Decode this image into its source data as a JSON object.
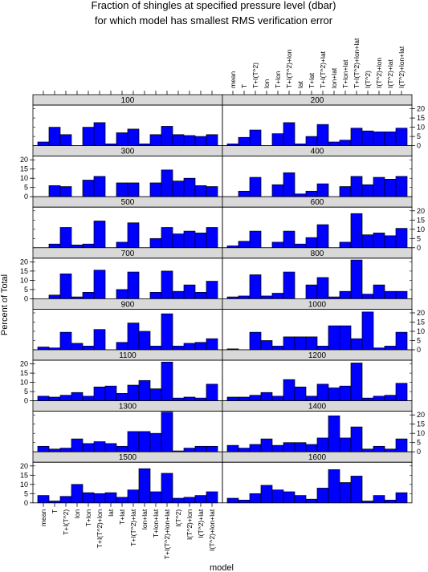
{
  "chart_data": {
    "type": "bar",
    "title": [
      "Fraction of shingles at specified pressure level (dbar)",
      "for which model has smallest RMS verification error"
    ],
    "xlabel": "model",
    "ylabel": "Percent of Total",
    "ylim": [
      0,
      22
    ],
    "yticks": [
      0,
      5,
      10,
      15,
      20
    ],
    "bar_color": "#0000ff",
    "strip_color": "#d9d9d9",
    "categories": [
      "mean",
      "T",
      "T+I(T^2)",
      "lon",
      "T+lon",
      "T+I(T^2)+lon",
      "lat",
      "T+lat",
      "T+I(T^2)+lat",
      "lon+lat",
      "T+lon+lat",
      "T+I(T^2)+lon+lat",
      "I(T^2)",
      "I(T^2)+lon",
      "I(T^2)+lat",
      "I(T^2)+lon+lat"
    ],
    "panels": [
      {
        "level": "100",
        "values": [
          2,
          10,
          6,
          0,
          10,
          12.5,
          1,
          7,
          9,
          1,
          6,
          10.5,
          6,
          5.5,
          5,
          6
        ]
      },
      {
        "level": "200",
        "values": [
          1,
          4.5,
          8.5,
          0,
          6.5,
          12.5,
          1,
          5,
          11.5,
          2,
          3,
          9.5,
          8,
          7.5,
          7.5,
          9.5
        ]
      },
      {
        "level": "300",
        "values": [
          0,
          6,
          5.5,
          0,
          9,
          11,
          0,
          7.5,
          7.5,
          0,
          7.5,
          14.5,
          8.5,
          10,
          6,
          5.5
        ]
      },
      {
        "level": "400",
        "values": [
          0,
          3,
          10.5,
          0,
          6.5,
          13,
          1.5,
          3,
          7,
          0,
          5.5,
          11,
          6.5,
          10.5,
          9.5,
          11
        ]
      },
      {
        "level": "500",
        "values": [
          0,
          2,
          11,
          1.5,
          2,
          14.5,
          0,
          3,
          13.5,
          0,
          5,
          11,
          7.5,
          9,
          8,
          11
        ]
      },
      {
        "level": "600",
        "values": [
          1,
          3.5,
          9,
          0,
          3,
          9,
          2,
          5.5,
          12.5,
          0,
          3,
          18.5,
          7,
          8,
          6.5,
          10.5
        ]
      },
      {
        "level": "700",
        "values": [
          0,
          2,
          13.5,
          1,
          3.5,
          15.5,
          0,
          5,
          14.5,
          0,
          3.5,
          15,
          4,
          7.5,
          3.5,
          9.5
        ]
      },
      {
        "level": "800",
        "values": [
          1,
          1.5,
          13,
          1.5,
          3,
          14.5,
          0,
          7.5,
          11.5,
          1,
          4,
          21,
          2.5,
          7.5,
          4,
          4
        ]
      },
      {
        "level": "900",
        "values": [
          1.5,
          1,
          9.5,
          3.5,
          2,
          11,
          0,
          4,
          14.5,
          10,
          2,
          19.5,
          2,
          3.5,
          4,
          6
        ]
      },
      {
        "level": "1000",
        "values": [
          0.5,
          0,
          9.5,
          5,
          2,
          7,
          7,
          7,
          2,
          13,
          13,
          6,
          20.5,
          1,
          2,
          9.5
        ]
      },
      {
        "level": "1100",
        "values": [
          2.5,
          2,
          3,
          4.5,
          2.5,
          7.5,
          8,
          4,
          8.5,
          11,
          6.5,
          21,
          1.5,
          2,
          1.5,
          9
        ]
      },
      {
        "level": "1200",
        "values": [
          2,
          2,
          3,
          4.5,
          2.5,
          11.5,
          7.5,
          2.5,
          9,
          7,
          8,
          20.5,
          1.5,
          2.5,
          3,
          9.5
        ]
      },
      {
        "level": "1300",
        "values": [
          3,
          1.5,
          2,
          7,
          4.5,
          5.5,
          4.5,
          3,
          11,
          11,
          10,
          21.5,
          0.5,
          2,
          3,
          3
        ]
      },
      {
        "level": "1400",
        "values": [
          3.5,
          2,
          4,
          7,
          3.5,
          5,
          5,
          4,
          7.5,
          19.5,
          7.5,
          13.5,
          1.5,
          3,
          1.5,
          7
        ]
      },
      {
        "level": "1500",
        "values": [
          4,
          1,
          3.5,
          10,
          5.5,
          5,
          5.5,
          3,
          7,
          18.5,
          6,
          16,
          2.5,
          3,
          4,
          6
        ]
      },
      {
        "level": "1600",
        "values": [
          2.5,
          1.5,
          5,
          9.5,
          7,
          6,
          4,
          2,
          8,
          18,
          11,
          14.5,
          1,
          4,
          1.5,
          5.5
        ]
      }
    ]
  }
}
